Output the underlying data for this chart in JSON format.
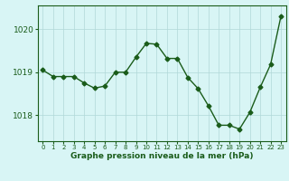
{
  "x": [
    0,
    1,
    2,
    3,
    4,
    5,
    6,
    7,
    8,
    9,
    10,
    11,
    12,
    13,
    14,
    15,
    16,
    17,
    18,
    19,
    20,
    21,
    22,
    23
  ],
  "y": [
    1019.05,
    1018.9,
    1018.9,
    1018.9,
    1018.75,
    1018.63,
    1018.68,
    1019.0,
    1019.0,
    1019.35,
    1019.67,
    1019.65,
    1019.32,
    1019.32,
    1018.88,
    1018.62,
    1018.22,
    1017.77,
    1017.77,
    1017.68,
    1018.07,
    1018.65,
    1019.18,
    1020.3
  ],
  "line_color": "#1a5c1a",
  "marker": "D",
  "marker_size": 2.5,
  "bg_color": "#d8f5f5",
  "grid_color": "#b0d8d8",
  "xlabel": "Graphe pression niveau de la mer (hPa)",
  "xlabel_color": "#1a5c1a",
  "tick_color": "#1a5c1a",
  "ylim": [
    1017.4,
    1020.55
  ],
  "yticks": [
    1018,
    1019,
    1020
  ],
  "xlim": [
    -0.5,
    23.5
  ],
  "xtick_labels": [
    "0",
    "1",
    "2",
    "3",
    "4",
    "5",
    "6",
    "7",
    "8",
    "9",
    "10",
    "11",
    "12",
    "13",
    "14",
    "15",
    "16",
    "17",
    "18",
    "19",
    "20",
    "21",
    "22",
    "23"
  ],
  "xlabel_fontsize": 6.5,
  "ytick_fontsize": 6.5,
  "xtick_fontsize": 5.0,
  "linewidth": 1.0,
  "grid_linewidth": 0.5
}
